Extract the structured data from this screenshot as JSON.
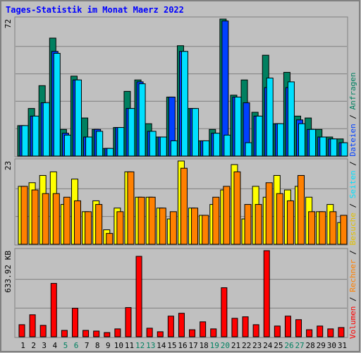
{
  "title": "Tages-Statistik im Monat Maerz 2022",
  "legend_separator": " / ",
  "chart_data": [
    {
      "type": "bar",
      "ylim": [
        0,
        72
      ],
      "yticks": [
        72
      ],
      "grid_divisions": 5,
      "series": [
        {
          "name": "Anfragen",
          "color": "#008060",
          "values": [
            16,
            25,
            37,
            62,
            14,
            42,
            20,
            14,
            4,
            15,
            34,
            40,
            17,
            10,
            31,
            58,
            25,
            8,
            14,
            72,
            32,
            40,
            23,
            53,
            17,
            44,
            21,
            20,
            14,
            10,
            9
          ]
        },
        {
          "name": "Dateien",
          "color": "#0040ff",
          "values": [
            16,
            21,
            28,
            55,
            12,
            40,
            10,
            14,
            4,
            15,
            25,
            39,
            13,
            10,
            31,
            55,
            25,
            8,
            12,
            71,
            31,
            28,
            21,
            36,
            17,
            36,
            19,
            14,
            10,
            9,
            7
          ]
        },
        {
          "name": "Seiten",
          "color": "#00e0ff",
          "values": [
            16,
            21,
            28,
            54,
            11,
            40,
            10,
            13,
            4,
            15,
            25,
            38,
            13,
            10,
            8,
            55,
            25,
            8,
            12,
            11,
            31,
            7,
            21,
            41,
            17,
            39,
            17,
            14,
            10,
            9,
            7
          ]
        }
      ]
    },
    {
      "type": "bar",
      "ylim": [
        0,
        23
      ],
      "yticks": [
        23
      ],
      "grid_divisions": 3,
      "series": [
        {
          "name": "Besuche",
          "color": "#ffff00",
          "values": [
            16,
            17,
            19,
            20,
            11,
            18,
            9,
            12,
            4,
            10,
            20,
            13,
            13,
            10,
            7,
            23,
            10,
            8,
            11,
            15,
            22,
            7,
            16,
            13,
            19,
            15,
            16,
            13,
            9,
            11,
            6
          ]
        },
        {
          "name": "Rechner",
          "color": "#ff8000",
          "values": [
            16,
            15,
            14,
            14,
            13,
            12,
            9,
            11,
            3,
            9,
            20,
            13,
            13,
            10,
            9,
            21,
            10,
            8,
            13,
            16,
            20,
            11,
            11,
            17,
            14,
            12,
            19,
            9,
            9,
            9,
            8
          ]
        }
      ]
    },
    {
      "type": "bar",
      "ylim": [
        0,
        633.92
      ],
      "yticks": [
        {
          "value": 633.92,
          "label": "633.92 KB"
        }
      ],
      "grid_divisions": 3,
      "categories": [
        "1",
        "2",
        "3",
        "4",
        "5",
        "6",
        "7",
        "8",
        "9",
        "10",
        "11",
        "12",
        "13",
        "14",
        "15",
        "16",
        "17",
        "18",
        "19",
        "20",
        "21",
        "22",
        "23",
        "24",
        "25",
        "26",
        "27",
        "28",
        "29",
        "30",
        "31"
      ],
      "category_colors": [
        "#000000",
        "#000000",
        "#000000",
        "#000000",
        "#008060",
        "#008060",
        "#000000",
        "#000000",
        "#000000",
        "#000000",
        "#000000",
        "#008060",
        "#008060",
        "#000000",
        "#000000",
        "#000000",
        "#000000",
        "#000000",
        "#008060",
        "#008060",
        "#000000",
        "#000000",
        "#000000",
        "#000000",
        "#000000",
        "#008060",
        "#008060",
        "#000000",
        "#000000",
        "#000000",
        "#000000"
      ],
      "series": [
        {
          "name": "Volumen",
          "color": "#ff0000",
          "values": [
            89,
            162,
            84,
            393,
            47,
            210,
            47,
            42,
            31,
            58,
            215,
            592,
            63,
            37,
            152,
            173,
            52,
            110,
            58,
            361,
            136,
            147,
            89,
            633.92,
            79,
            152,
            126,
            52,
            79,
            58,
            68
          ]
        }
      ]
    }
  ]
}
